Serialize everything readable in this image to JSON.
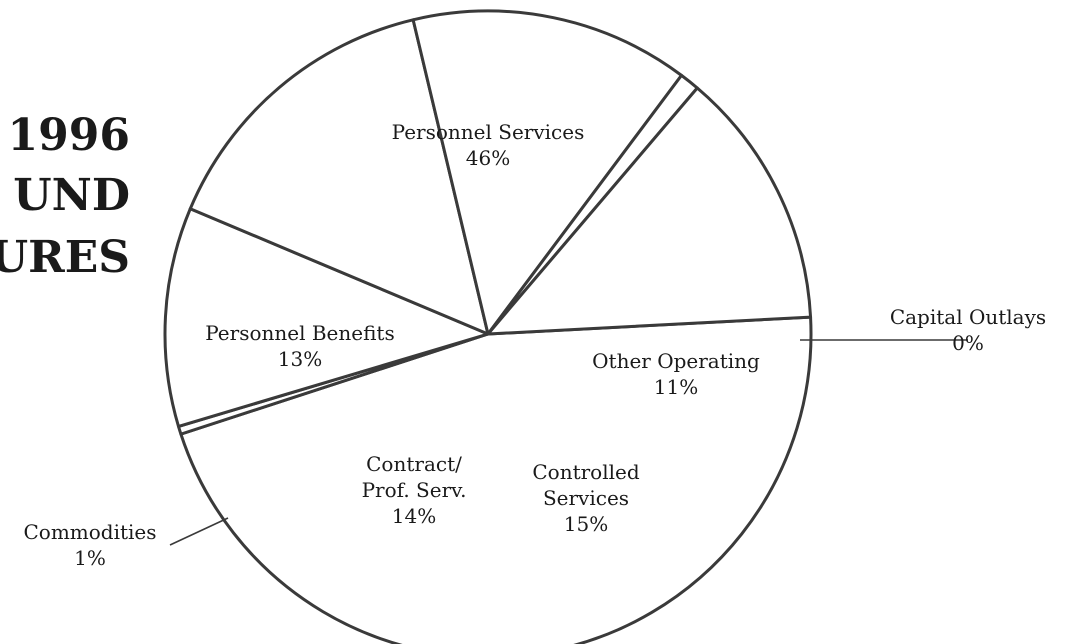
{
  "title_lines": [
    "1996",
    "UND",
    "URES"
  ],
  "chart_data": {
    "type": "pie",
    "title": "1996 UND URES",
    "slices": [
      {
        "label_lines": [
          "Personnel Services"
        ],
        "value": 46,
        "value_label": "46%"
      },
      {
        "label_lines": [
          "Capital Outlays"
        ],
        "value": 0.4,
        "value_label": "0%"
      },
      {
        "label_lines": [
          "Other Operating"
        ],
        "value": 11,
        "value_label": "11%"
      },
      {
        "label_lines": [
          "Controlled",
          "Services"
        ],
        "value": 15,
        "value_label": "15%"
      },
      {
        "label_lines": [
          "Contract/",
          "Prof. Serv."
        ],
        "value": 14,
        "value_label": "14%"
      },
      {
        "label_lines": [
          "Commodities"
        ],
        "value": 1,
        "value_label": "1%"
      },
      {
        "label_lines": [
          "Personnel Benefits"
        ],
        "value": 13,
        "value_label": "13%"
      }
    ],
    "colors": {
      "fill": "#ffffff",
      "stroke": "#3a3a3a"
    }
  }
}
